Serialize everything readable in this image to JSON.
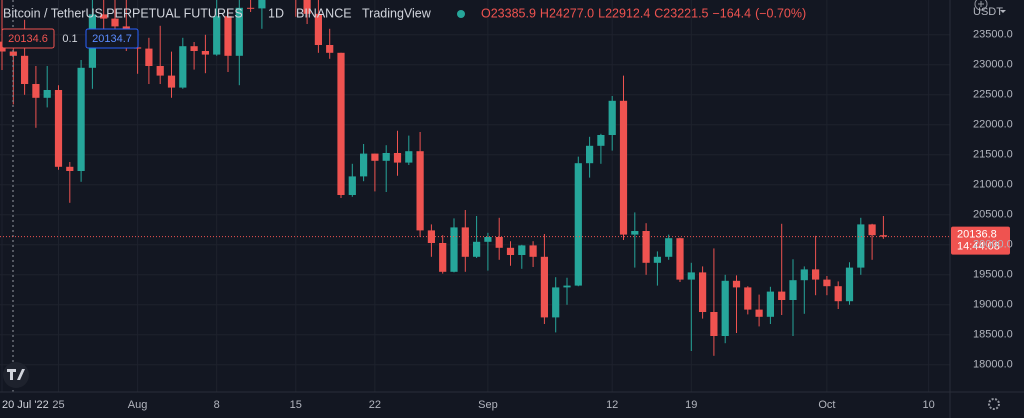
{
  "chart_data": {
    "type": "candlestick",
    "header": {
      "symbol": "Bitcoin / TetherUS PERPETUAL FUTURES",
      "interval": "1D",
      "exchange": "BINANCE",
      "source": "TradingView"
    },
    "ohlc_legend": [
      {
        "value": 23385.9,
        "label": "O23385.9"
      },
      {
        "value": 24277.0,
        "label": "H24277.0"
      },
      {
        "value": 22912.4,
        "label": "L22912.4"
      },
      {
        "value": 23221.5,
        "label": "C23221.5"
      }
    ],
    "change": {
      "value": -164.4,
      "label": "−164.4"
    },
    "change_pct": {
      "value": -0.7,
      "label": "(−0.70%)"
    },
    "sell_price": 20134.6,
    "quantity": 0.1,
    "buy_price": 20134.7,
    "last_price": 20136.8,
    "countdown": "14:44:08",
    "currency": "USDT",
    "up_color": "#26a69a",
    "down_color": "#ef5350",
    "x": [
      "2022-07-20",
      "2022-07-21",
      "2022-07-22",
      "2022-07-23",
      "2022-07-24",
      "2022-07-25",
      "2022-07-26",
      "2022-07-27",
      "2022-07-28",
      "2022-07-29",
      "2022-07-30",
      "2022-07-31",
      "2022-08-01",
      "2022-08-02",
      "2022-08-03",
      "2022-08-04",
      "2022-08-05",
      "2022-08-06",
      "2022-08-07",
      "2022-08-08",
      "2022-08-09",
      "2022-08-10",
      "2022-08-11",
      "2022-08-12",
      "2022-08-13",
      "2022-08-14",
      "2022-08-15",
      "2022-08-16",
      "2022-08-17",
      "2022-08-18",
      "2022-08-19",
      "2022-08-20",
      "2022-08-21",
      "2022-08-22",
      "2022-08-23",
      "2022-08-24",
      "2022-08-25",
      "2022-08-26",
      "2022-08-27",
      "2022-08-28",
      "2022-08-29",
      "2022-08-30",
      "2022-08-31",
      "2022-09-01",
      "2022-09-02",
      "2022-09-03",
      "2022-09-04",
      "2022-09-05",
      "2022-09-06",
      "2022-09-07",
      "2022-09-08",
      "2022-09-09",
      "2022-09-10",
      "2022-09-11",
      "2022-09-12",
      "2022-09-13",
      "2022-09-14",
      "2022-09-15",
      "2022-09-16",
      "2022-09-17",
      "2022-09-18",
      "2022-09-19",
      "2022-09-20",
      "2022-09-21",
      "2022-09-22",
      "2022-09-23",
      "2022-09-24",
      "2022-09-25",
      "2022-09-26",
      "2022-09-27",
      "2022-09-28",
      "2022-09-29",
      "2022-09-30",
      "2022-10-01",
      "2022-10-02",
      "2022-10-03",
      "2022-10-04",
      "2022-10-05",
      "2022-10-06"
    ],
    "open": [
      23385.9,
      23221.5,
      23150,
      22680,
      22450,
      22580,
      21300,
      21230,
      22950,
      23840,
      23770,
      23640,
      23290,
      23270,
      22980,
      22820,
      22620,
      23310,
      23230,
      23170,
      23810,
      23150,
      23950,
      23940,
      24400,
      24440,
      24300,
      24100,
      23850,
      23330,
      23200,
      20830,
      21140,
      21520,
      21400,
      21530,
      21370,
      21560,
      20240,
      20030,
      19550,
      20290,
      19800,
      20050,
      20130,
      19950,
      19830,
      19990,
      19800,
      18790,
      19290,
      19320,
      21360,
      21650,
      21830,
      22400,
      20170,
      20230,
      19700,
      19800,
      20110,
      19420,
      19540,
      18880,
      18480,
      19400,
      19290,
      18920,
      18800,
      19220,
      19080,
      19410,
      19590,
      19420,
      19310,
      19060,
      19620,
      20340,
      20160
    ],
    "high": [
      24277.0,
      23440,
      23750,
      22980,
      22980,
      22660,
      21380,
      23080,
      24150,
      24430,
      24640,
      24200,
      23500,
      23450,
      23650,
      23220,
      23450,
      23380,
      23500,
      24240,
      23930,
      24220,
      24920,
      24450,
      24880,
      25200,
      25200,
      24240,
      24450,
      23600,
      23200,
      21350,
      21680,
      21520,
      21660,
      21900,
      21820,
      21880,
      20340,
      20160,
      20440,
      20580,
      20480,
      20200,
      20450,
      20060,
      20000,
      20060,
      20180,
      19460,
      19450,
      21470,
      21800,
      21850,
      22480,
      22820,
      20540,
      20360,
      19890,
      20170,
      20120,
      19700,
      19640,
      19940,
      19500,
      19490,
      19310,
      19170,
      19300,
      20350,
      19760,
      19640,
      20150,
      19480,
      19390,
      19710,
      20450,
      20350,
      20480
    ],
    "low": [
      22912.4,
      22340,
      22500,
      21950,
      22290,
      21250,
      20700,
      21050,
      22600,
      23450,
      23500,
      23230,
      22850,
      22680,
      22680,
      22450,
      22600,
      22920,
      22860,
      23150,
      22880,
      22660,
      23880,
      23600,
      24300,
      24150,
      23800,
      23680,
      23200,
      23100,
      20780,
      20800,
      21060,
      20890,
      20880,
      21150,
      21330,
      20130,
      19800,
      19520,
      19540,
      19550,
      19780,
      19570,
      19750,
      19650,
      19600,
      19630,
      18680,
      18540,
      19000,
      19310,
      21120,
      21350,
      21570,
      20080,
      19620,
      19500,
      19320,
      19750,
      19380,
      18230,
      18770,
      18150,
      18360,
      18530,
      18840,
      18640,
      18680,
      18830,
      18480,
      18850,
      19160,
      19160,
      18930,
      19000,
      19500,
      19750,
      20100
    ],
    "close": [
      23221.5,
      23150,
      22680,
      22450,
      22580,
      21300,
      21230,
      22950,
      23840,
      23770,
      23640,
      23290,
      23270,
      22980,
      22820,
      22620,
      23310,
      23230,
      23170,
      23810,
      23150,
      23950,
      23940,
      24400,
      24440,
      24300,
      24100,
      23850,
      23330,
      23200,
      20830,
      21140,
      21520,
      21400,
      21530,
      21370,
      21560,
      20240,
      20030,
      19550,
      20290,
      19800,
      20050,
      20130,
      19950,
      19830,
      19990,
      19800,
      18790,
      19290,
      19320,
      21360,
      21650,
      21830,
      22400,
      20170,
      20230,
      19700,
      19800,
      20110,
      19420,
      19540,
      18880,
      18480,
      19400,
      19290,
      18920,
      18800,
      19220,
      19080,
      19410,
      19590,
      19420,
      19310,
      19060,
      19620,
      20340,
      20160,
      20136.8
    ],
    "ylim": [
      17580,
      24080
    ],
    "yticks": [
      {
        "value": 18000,
        "label": "18000.0"
      },
      {
        "value": 18500,
        "label": "18500.0"
      },
      {
        "value": 19000,
        "label": "19000.0"
      },
      {
        "value": 19500,
        "label": "19500.0"
      },
      {
        "value": 20000,
        "label": "20000.0"
      },
      {
        "value": 20500,
        "label": "20500.0"
      },
      {
        "value": 21000,
        "label": "21000.0"
      },
      {
        "value": 21500,
        "label": "21500.0"
      },
      {
        "value": 22000,
        "label": "22000.0"
      },
      {
        "value": 22500,
        "label": "22500.0"
      },
      {
        "value": 23000,
        "label": "23000.0"
      },
      {
        "value": 23500,
        "label": "23500.0"
      }
    ],
    "xticks": [
      {
        "value": "2022-07-20",
        "label": "20 Jul '22"
      },
      {
        "value": "2022-07-25",
        "label": "25"
      },
      {
        "value": "2022-08-01",
        "label": "Aug"
      },
      {
        "value": "2022-08-08",
        "label": "8"
      },
      {
        "value": "2022-08-15",
        "label": "15"
      },
      {
        "value": "2022-08-22",
        "label": "22"
      },
      {
        "value": "2022-09-01",
        "label": "Sep"
      },
      {
        "value": "2022-09-12",
        "label": "12"
      },
      {
        "value": "2022-09-19",
        "label": "19"
      },
      {
        "value": "2022-10-01",
        "label": "Oct"
      },
      {
        "value": "2022-10-10",
        "label": "10"
      }
    ],
    "grid": true
  }
}
